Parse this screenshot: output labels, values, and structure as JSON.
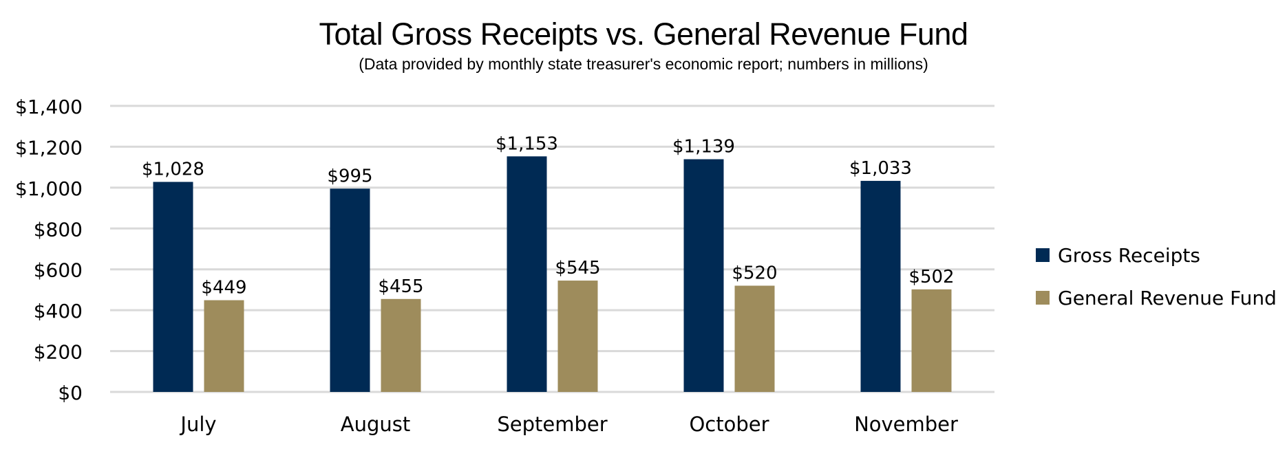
{
  "title": "Total Gross Receipts vs. General Revenue Fund",
  "subtitle": "(Data provided by monthly state treasurer's economic report; numbers in millions)",
  "colors": {
    "gross_receipts": "#002a54",
    "general_revenue_fund": "#9e8c5c",
    "grid": "#d9d9d9"
  },
  "chart_data": {
    "type": "bar",
    "categories": [
      "July",
      "August",
      "September",
      "October",
      "November"
    ],
    "series": [
      {
        "name": "Gross Receipts",
        "values": [
          1028,
          995,
          1153,
          1139,
          1033
        ],
        "labels": [
          "$1,028",
          "$995",
          "$1,153",
          "$1,139",
          "$1,033"
        ]
      },
      {
        "name": "General Revenue Fund",
        "values": [
          449,
          455,
          545,
          520,
          502
        ],
        "labels": [
          "$449",
          "$455",
          "$545",
          "$520",
          "$502"
        ]
      }
    ],
    "ylim": [
      0,
      1400
    ],
    "yticks": [
      0,
      200,
      400,
      600,
      800,
      1000,
      1200,
      1400
    ],
    "ytick_labels": [
      "$0",
      "$200",
      "$400",
      "$600",
      "$800",
      "$1,000",
      "$1,200",
      "$1,400"
    ],
    "grid": true,
    "legend_position": "right"
  }
}
